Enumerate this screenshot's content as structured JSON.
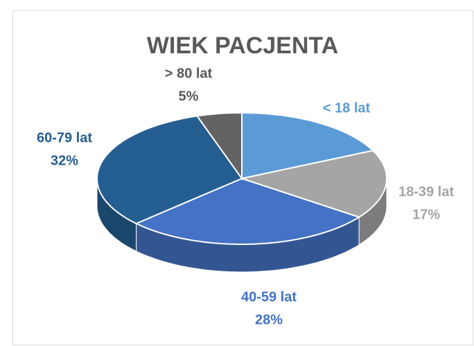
{
  "chart_data": {
    "type": "pie",
    "title": "WIEK PACJENTA",
    "categories": [
      "< 18 lat",
      "18-39 lat",
      "40-59 lat",
      "60-79 lat",
      "> 80 lat"
    ],
    "values": [
      18,
      17,
      28,
      32,
      5
    ],
    "value_labels": [
      null,
      "17%",
      "28%",
      "32%",
      "5%"
    ],
    "colors": [
      "#5b9bd5",
      "#a5a5a5",
      "#4472c4",
      "#255e91",
      "#636363"
    ]
  }
}
